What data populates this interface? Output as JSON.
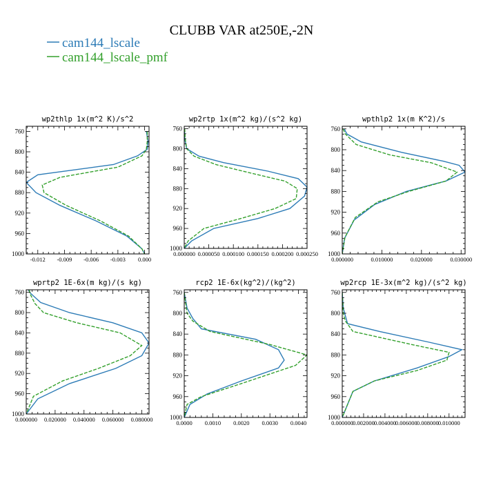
{
  "figure_title": "CLUBB VAR at250E,-2N",
  "legend": [
    {
      "label": "cam144_lscale",
      "color": "#2c7bb6",
      "dash": "none"
    },
    {
      "label": "cam144_lscale_pmf",
      "color": "#33a02c",
      "dash": "5,2"
    }
  ],
  "chart_data": [
    {
      "type": "line",
      "title": "wp2thlp  1x(m^2 K)/s^2",
      "ylim": [
        1000,
        750
      ],
      "yticks": [
        760,
        800,
        840,
        880,
        920,
        960,
        1000
      ],
      "yticklabels": [
        "760",
        "800",
        "840",
        "880",
        "920",
        "960",
        "1000"
      ],
      "xlim": [
        -0.0133,
        0.0005
      ],
      "xticks": [
        -0.012,
        -0.009,
        -0.006,
        -0.003,
        0.0
      ],
      "xticklabels": [
        "-0.012",
        "-0.009",
        "-0.006",
        "-0.003",
        "0.000"
      ],
      "series": [
        {
          "name": "cam144_lscale",
          "x": [
            0.0002,
            0.0004,
            0.0003,
            -0.0008,
            -0.0035,
            -0.012,
            -0.0133,
            -0.0122,
            -0.0095,
            -0.0055,
            -0.002,
            -0.0003,
            0.0
          ],
          "y": [
            760,
            780,
            795,
            808,
            825,
            845,
            860,
            880,
            905,
            935,
            965,
            990,
            1000
          ]
        },
        {
          "name": "cam144_lscale_pmf",
          "x": [
            0.0003,
            0.0003,
            0.0002,
            -0.0003,
            -0.003,
            -0.0095,
            -0.0115,
            -0.0113,
            -0.0088,
            -0.005,
            -0.0018,
            -0.0003,
            0.0
          ],
          "y": [
            760,
            780,
            795,
            808,
            830,
            850,
            865,
            880,
            905,
            935,
            965,
            990,
            1000
          ]
        }
      ]
    },
    {
      "type": "line",
      "title": "wp2rtp  1x(m^2 kg)/(s^2 kg)",
      "ylim": [
        1000,
        755
      ],
      "yticks": [
        760,
        800,
        840,
        880,
        920,
        960,
        1000
      ],
      "yticklabels": [
        "760",
        "800",
        "840",
        "880",
        "920",
        "960",
        "1000"
      ],
      "xlim": [
        0,
        0.00025
      ],
      "xticks": [
        0,
        5e-05,
        0.0001,
        0.00015,
        0.0002,
        0.00025
      ],
      "xticklabels": [
        "0.000000",
        "0.000050",
        "0.000100",
        "0.000150",
        "0.000200",
        "0.000250"
      ],
      "series": [
        {
          "name": "cam144_lscale",
          "x": [
            5e-07,
            1e-06,
            5e-06,
            3e-05,
            8e-05,
            0.00017,
            0.000232,
            0.00025,
            0.000245,
            0.000215,
            0.00015,
            6e-05,
            1.5e-05,
            0.0
          ],
          "y": [
            760,
            780,
            800,
            815,
            828,
            845,
            860,
            877,
            895,
            920,
            940,
            960,
            985,
            1000
          ]
        },
        {
          "name": "cam144_lscale_pmf",
          "x": [
            1e-06,
            2e-06,
            5e-06,
            2e-05,
            6.5e-05,
            0.00014,
            0.000205,
            0.00023,
            0.000228,
            0.000185,
            0.000115,
            4e-05,
            8e-06,
            0.0
          ],
          "y": [
            760,
            780,
            800,
            815,
            832,
            850,
            865,
            880,
            900,
            920,
            940,
            960,
            985,
            1000
          ]
        }
      ]
    },
    {
      "type": "line",
      "title": "wpthlp2  1x(m K^2)/s",
      "ylim": [
        1000,
        755
      ],
      "yticks": [
        760,
        800,
        840,
        880,
        920,
        960,
        1000
      ],
      "yticklabels": [
        "760",
        "800",
        "840",
        "880",
        "920",
        "960",
        "1000"
      ],
      "xlim": [
        0,
        0.031
      ],
      "xticks": [
        0,
        0.01,
        0.02,
        0.03
      ],
      "xticklabels": [
        "0.000000",
        "0.010000",
        "0.020000",
        "0.030000"
      ],
      "series": [
        {
          "name": "cam144_lscale",
          "x": [
            0.0005,
            0.0012,
            0.0048,
            0.015,
            0.0255,
            0.0295,
            0.031,
            0.0262,
            0.0162,
            0.0082,
            0.003,
            0.0006,
            0.0
          ],
          "y": [
            760,
            770,
            785,
            805,
            822,
            830,
            843,
            860,
            880,
            905,
            935,
            970,
            1000
          ]
        },
        {
          "name": "cam144_lscale_pmf",
          "x": [
            0.0002,
            0.0008,
            0.0035,
            0.012,
            0.0225,
            0.029,
            0.0262,
            0.0168,
            0.009,
            0.0033,
            0.0007,
            0.0
          ],
          "y": [
            760,
            770,
            790,
            810,
            825,
            843,
            860,
            880,
            900,
            930,
            968,
            1000
          ]
        }
      ]
    },
    {
      "type": "line",
      "title": "wprtp2  1E-6x(m kg)/(s kg)",
      "ylim": [
        1000,
        755
      ],
      "yticks": [
        760,
        800,
        840,
        880,
        920,
        960,
        1000
      ],
      "yticklabels": [
        "760",
        "800",
        "840",
        "880",
        "920",
        "960",
        "1000"
      ],
      "xlim": [
        0,
        0.085
      ],
      "xticks": [
        0,
        0.02,
        0.04,
        0.06,
        0.08
      ],
      "xticklabels": [
        "0.000000",
        "0.020000",
        "0.040000",
        "0.060000",
        "0.080000"
      ],
      "series": [
        {
          "name": "cam144_lscale",
          "x": [
            0.0015,
            0.003,
            0.01,
            0.03,
            0.06,
            0.08,
            0.085,
            0.08,
            0.062,
            0.03,
            0.008,
            0.0
          ],
          "y": [
            755,
            762,
            780,
            800,
            820,
            840,
            860,
            885,
            910,
            940,
            970,
            1000
          ]
        },
        {
          "name": "cam144_lscale_pmf",
          "x": [
            0.002,
            0.003,
            0.006,
            0.012,
            0.035,
            0.065,
            0.08,
            0.072,
            0.05,
            0.025,
            0.005,
            0.0
          ],
          "y": [
            755,
            765,
            782,
            800,
            820,
            840,
            865,
            885,
            910,
            935,
            965,
            1000
          ]
        }
      ]
    },
    {
      "type": "line",
      "title": "rcp2  1E-6x(kg^2)/(kg^2)",
      "ylim": [
        1000,
        755
      ],
      "yticks": [
        760,
        800,
        840,
        880,
        920,
        960,
        1000
      ],
      "yticklabels": [
        "760",
        "800",
        "840",
        "880",
        "920",
        "960",
        "1000"
      ],
      "xlim": [
        0,
        0.0043
      ],
      "xticks": [
        0,
        0.001,
        0.002,
        0.003,
        0.004
      ],
      "xticklabels": [
        "0.0000",
        "0.0010",
        "0.0020",
        "0.0030",
        "0.0040"
      ],
      "series": [
        {
          "name": "cam144_lscale",
          "x": [
            0.0,
            0.0001,
            0.0003,
            0.0006,
            0.0025,
            0.0033,
            0.0035,
            0.0033,
            0.002,
            0.0008,
            0.0002,
            0.0
          ],
          "y": [
            760,
            790,
            810,
            830,
            850,
            870,
            890,
            905,
            930,
            955,
            975,
            1000
          ]
        },
        {
          "name": "cam144_lscale_pmf",
          "x": [
            0.0,
            0.0001,
            0.0003,
            0.0009,
            0.003,
            0.0043,
            0.0039,
            0.002,
            0.0006,
            0.0001,
            0.0
          ],
          "y": [
            760,
            800,
            815,
            835,
            860,
            880,
            900,
            935,
            960,
            975,
            1000
          ]
        }
      ]
    },
    {
      "type": "line",
      "title": "wp2rcp  1E-3x(m^2 kg)/(s^2 kg)",
      "ylim": [
        1000,
        755
      ],
      "yticks": [
        760,
        800,
        840,
        880,
        920,
        960,
        1000
      ],
      "yticklabels": [
        "760",
        "800",
        "840",
        "880",
        "920",
        "960",
        "1000"
      ],
      "xlim": [
        0,
        0.0115
      ],
      "xticks": [
        0,
        0.002,
        0.004,
        0.006,
        0.008,
        0.01
      ],
      "xticklabels": [
        "0.000000",
        "0.002000",
        "0.004000",
        "0.006000",
        "0.008000",
        "0.010000"
      ],
      "series": [
        {
          "name": "cam144_lscale",
          "x": [
            0.0,
            0.0001,
            0.0003,
            0.0005,
            0.0035,
            0.008,
            0.0112,
            0.01,
            0.007,
            0.003,
            0.001,
            0.0
          ],
          "y": [
            760,
            790,
            805,
            820,
            835,
            855,
            870,
            883,
            905,
            930,
            950,
            1000
          ]
        },
        {
          "name": "cam144_lscale_pmf",
          "x": [
            0.0,
            0.0001,
            0.0003,
            0.001,
            0.0065,
            0.01,
            0.0098,
            0.007,
            0.003,
            0.001,
            0.0
          ],
          "y": [
            760,
            800,
            815,
            835,
            860,
            875,
            890,
            910,
            930,
            950,
            1000
          ]
        }
      ]
    }
  ]
}
